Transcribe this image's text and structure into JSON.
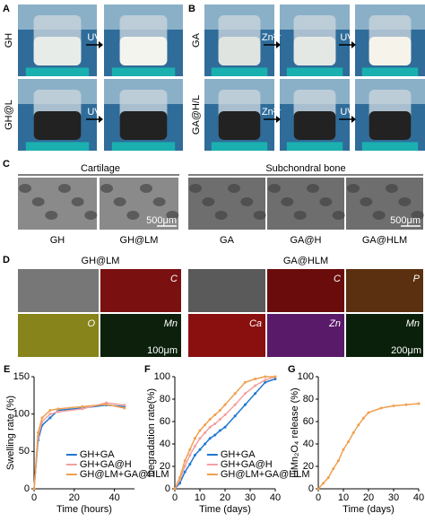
{
  "panel_a": {
    "label": "A",
    "rows": [
      "GH",
      "GH@L"
    ],
    "arrow": "UV"
  },
  "panel_b": {
    "label": "B",
    "rows": [
      "GA",
      "GA@H/L"
    ],
    "arrows": [
      "Zn²⁺",
      "UV"
    ]
  },
  "panel_c": {
    "label": "C",
    "groups": [
      "Cartilage",
      "Subchondral bone"
    ],
    "samples": [
      "GH",
      "GH@LM",
      "GA",
      "GA@H",
      "GA@HLM"
    ],
    "scale": "500μm"
  },
  "panel_d": {
    "label": "D",
    "groups": [
      "GH@LM",
      "GA@HLM"
    ],
    "channels_left": [
      "C",
      "O",
      "Mn"
    ],
    "channels_right": [
      "C",
      "P",
      "Ca",
      "Zn",
      "Mn"
    ],
    "scales": [
      "100μm",
      "200μm"
    ]
  },
  "chart_data": [
    {
      "type": "line",
      "panel_label": "E",
      "y_label": "Swelling rate (%)",
      "x_label": "Time (hours)",
      "xlim": [
        0,
        50
      ],
      "xticks": [
        0,
        20,
        40
      ],
      "ylim": [
        0,
        150
      ],
      "yticks": [
        0,
        50,
        100,
        150
      ],
      "legend": "lower right",
      "x": [
        0,
        2,
        4,
        8,
        12,
        24,
        36,
        45
      ],
      "series": [
        {
          "name": "GH+GA",
          "color": "#1f78d1",
          "values": [
            0,
            65,
            85,
            95,
            105,
            108,
            112,
            110
          ]
        },
        {
          "name": "GH+GA@H",
          "color": "#f2a0a0",
          "values": [
            0,
            70,
            90,
            100,
            103,
            107,
            115,
            112
          ]
        },
        {
          "name": "GH@LM+GA@HLM",
          "color": "#f0a050",
          "values": [
            0,
            75,
            95,
            105,
            107,
            110,
            113,
            108
          ]
        }
      ]
    },
    {
      "type": "line",
      "panel_label": "F",
      "y_label": "Degradation rate(%)",
      "x_label": "Time (days)",
      "xlim": [
        0,
        40
      ],
      "xticks": [
        0,
        10,
        20,
        30,
        40
      ],
      "ylim": [
        0,
        100
      ],
      "yticks": [
        0,
        20,
        40,
        60,
        80,
        100
      ],
      "legend": "lower right",
      "x": [
        0,
        2,
        4,
        6,
        8,
        10,
        12,
        14,
        16,
        18,
        20,
        24,
        28,
        32,
        36,
        40
      ],
      "series": [
        {
          "name": "GH+GA",
          "color": "#1f78d1",
          "values": [
            0,
            5,
            15,
            22,
            30,
            35,
            40,
            45,
            48,
            52,
            55,
            65,
            75,
            85,
            95,
            98
          ]
        },
        {
          "name": "GH+GA@H",
          "color": "#f2a0a0",
          "values": [
            0,
            8,
            20,
            30,
            38,
            45,
            50,
            55,
            58,
            62,
            66,
            75,
            85,
            92,
            97,
            100
          ]
        },
        {
          "name": "GH@LM+GA@HLM",
          "color": "#f0a050",
          "values": [
            0,
            10,
            25,
            35,
            45,
            52,
            57,
            62,
            66,
            70,
            75,
            85,
            95,
            98,
            100,
            100
          ]
        }
      ]
    },
    {
      "type": "line",
      "panel_label": "G",
      "y_label": "LiMn₂O₄ release (%)",
      "x_label": "Time (days)",
      "xlim": [
        0,
        40
      ],
      "xticks": [
        0,
        10,
        20,
        30,
        40
      ],
      "ylim": [
        0,
        100
      ],
      "yticks": [
        0,
        20,
        40,
        60,
        80,
        100
      ],
      "x": [
        0,
        2,
        4,
        6,
        8,
        10,
        12,
        14,
        16,
        18,
        20,
        25,
        30,
        35,
        40
      ],
      "series": [
        {
          "color": "#f0a050",
          "values": [
            0,
            5,
            10,
            18,
            25,
            35,
            42,
            50,
            57,
            63,
            68,
            72,
            74,
            75,
            76
          ]
        }
      ]
    }
  ]
}
